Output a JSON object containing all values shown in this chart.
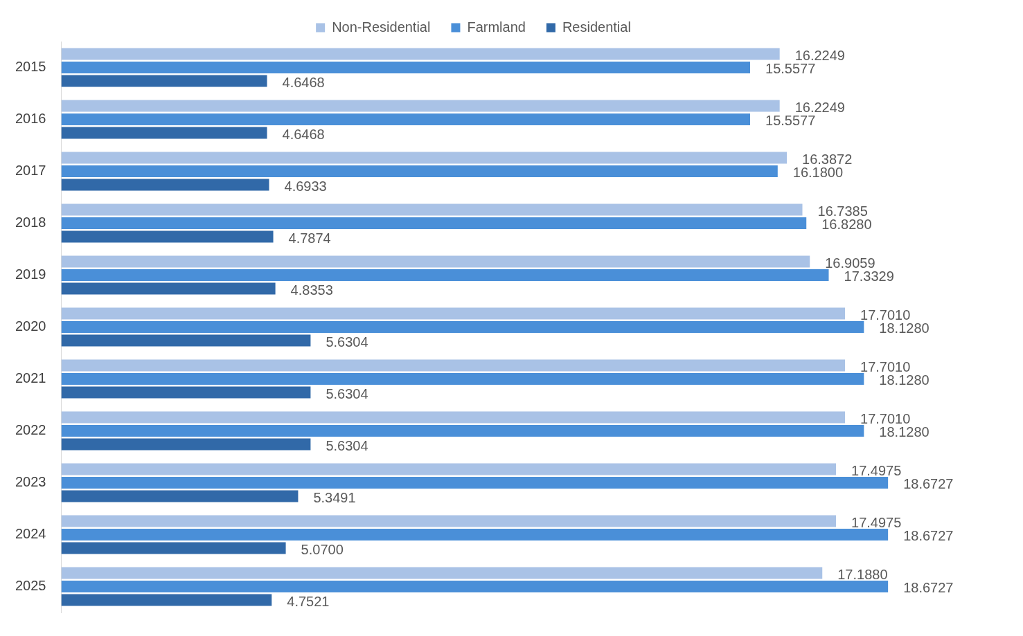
{
  "chart_data": {
    "type": "bar",
    "orientation": "horizontal",
    "legend": "top",
    "categories": [
      "2015",
      "2016",
      "2017",
      "2018",
      "2019",
      "2020",
      "2021",
      "2022",
      "2023",
      "2024",
      "2025"
    ],
    "series": [
      {
        "name": "Non-Residential",
        "color": "#a9c2e6",
        "values": [
          16.2249,
          16.2249,
          16.3872,
          16.7385,
          16.9059,
          17.701,
          17.701,
          17.701,
          17.4975,
          17.4975,
          17.188
        ],
        "value_labels": [
          "16.2249",
          "16.2249",
          "16.3872",
          "16.7385",
          "16.9059",
          "17.7010",
          "17.7010",
          "17.7010",
          "17.4975",
          "17.4975",
          "17.1880"
        ]
      },
      {
        "name": "Farmland",
        "color": "#4a8fd8",
        "values": [
          15.5577,
          15.5577,
          16.18,
          16.828,
          17.3329,
          18.128,
          18.128,
          18.128,
          18.6727,
          18.6727,
          18.6727
        ],
        "value_labels": [
          "15.5577",
          "15.5577",
          "16.1800",
          "16.8280",
          "17.3329",
          "18.1280",
          "18.1280",
          "18.1280",
          "18.6727",
          "18.6727",
          "18.6727"
        ]
      },
      {
        "name": "Residential",
        "color": "#3169a8",
        "values": [
          4.6468,
          4.6468,
          4.6933,
          4.7874,
          4.8353,
          5.6304,
          5.6304,
          5.6304,
          5.3491,
          5.07,
          4.7521
        ],
        "value_labels": [
          "4.6468",
          "4.6468",
          "4.6933",
          "4.7874",
          "4.8353",
          "5.6304",
          "5.6304",
          "5.6304",
          "5.3491",
          "5.0700",
          "4.7521"
        ]
      }
    ]
  }
}
